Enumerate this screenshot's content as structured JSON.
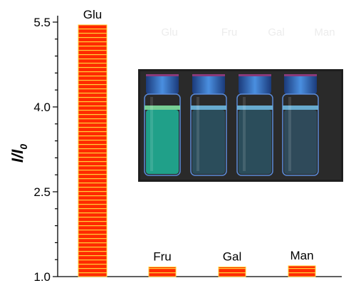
{
  "chart_data": {
    "type": "bar",
    "categories": [
      "Glu",
      "Fru",
      "Gal",
      "Man"
    ],
    "values": [
      5.45,
      1.17,
      1.17,
      1.19
    ],
    "ylabel_main": "I/I",
    "ylabel_sub": "0",
    "ylim": [
      1.0,
      5.5
    ],
    "yticks": [
      1.0,
      2.5,
      4.0,
      5.5
    ],
    "ytick_labels": [
      "1.0",
      "2.5",
      "4.0",
      "5.5"
    ],
    "bar_fill": "#ff2a00",
    "bar_stripe": "#ffd23a",
    "legend": "none",
    "inset": {
      "type": "photo",
      "vial_labels": [
        "Glu",
        "Fru",
        "Gal",
        "Man"
      ],
      "vial_colors": [
        "#1fb59a",
        "#2f8fb8",
        "#2f8fb8",
        "#3a86b4"
      ]
    }
  }
}
